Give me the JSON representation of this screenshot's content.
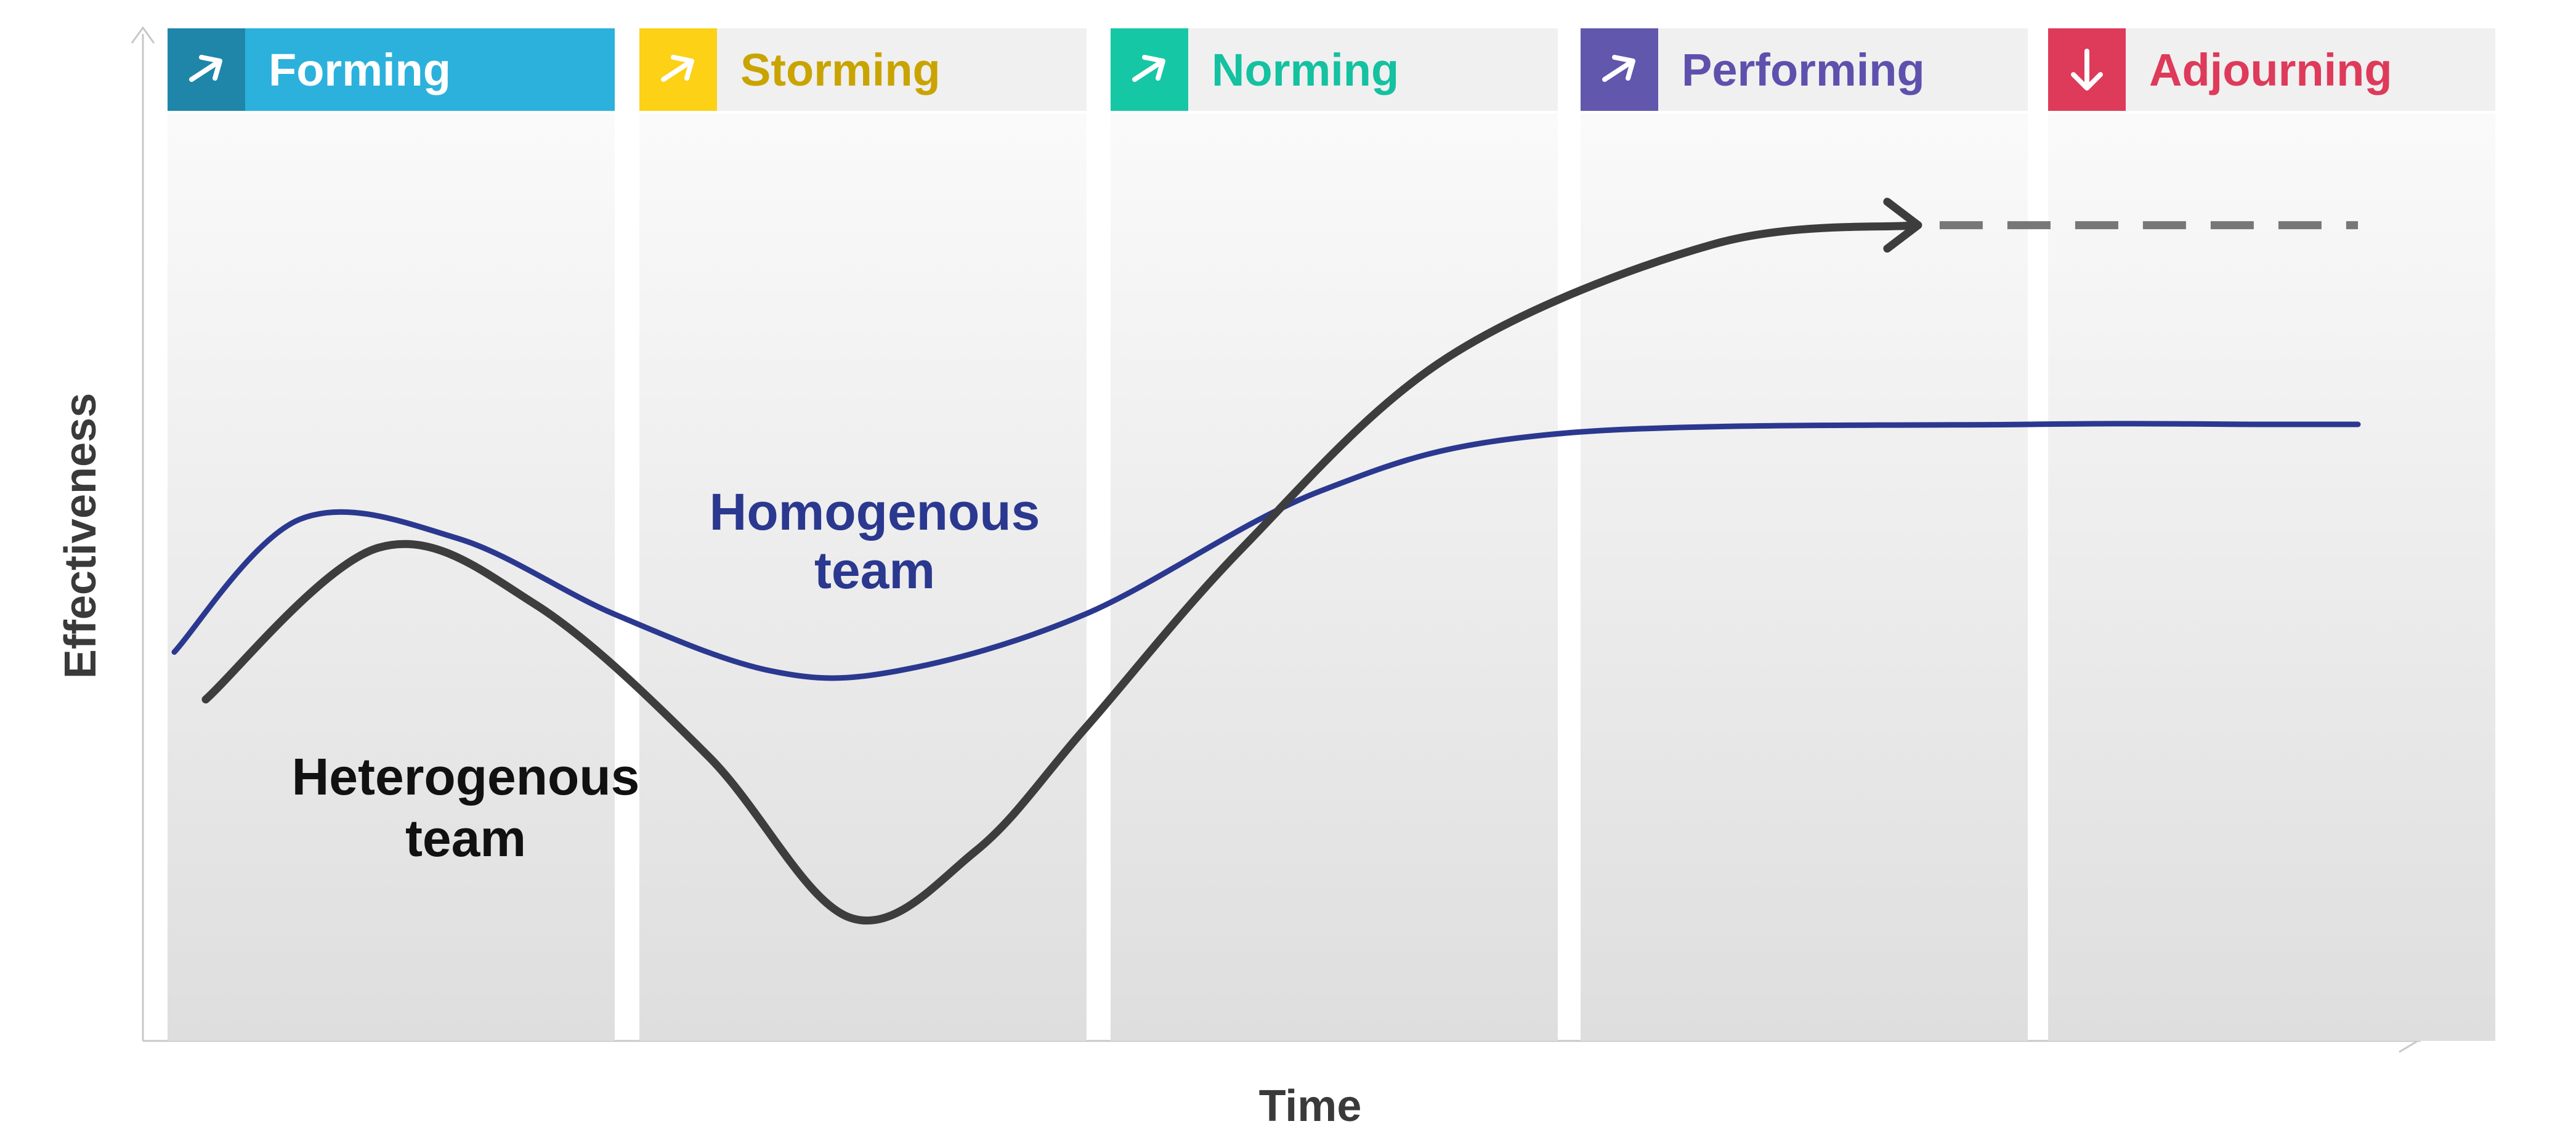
{
  "chart_data": {
    "type": "line",
    "xlabel": "Time",
    "ylabel": "Effectiveness",
    "stages": [
      {
        "name": "Forming",
        "icon": "arrow-up-right-icon",
        "color": "#2bb1dc",
        "icon_bg": "#1f86aa",
        "label_color": "#ffffff",
        "band_bg": "#2bb1dc"
      },
      {
        "name": "Storming",
        "icon": "arrow-up-right-icon",
        "color": "#fcd116",
        "icon_bg": "#fcd116",
        "label_color": "#c9a400",
        "band_bg": "#f0f0f0"
      },
      {
        "name": "Norming",
        "icon": "arrow-up-right-icon",
        "color": "#16c7a5",
        "icon_bg": "#16c7a5",
        "label_color": "#14c1a0",
        "band_bg": "#f0f0f0"
      },
      {
        "name": "Performing",
        "icon": "arrow-up-right-icon",
        "color": "#6157ad",
        "icon_bg": "#6157ad",
        "label_color": "#5e51ad",
        "band_bg": "#f0f0f0"
      },
      {
        "name": "Adjourning",
        "icon": "arrow-down-icon",
        "color": "#de3a5a",
        "icon_bg": "#de3a5a",
        "label_color": "#de3a5a",
        "band_bg": "#f0f0f0"
      }
    ],
    "series": [
      {
        "name": "Homogenous team",
        "label_lines": [
          "Homogenous",
          "team"
        ],
        "color": "#2b388f",
        "points": [
          [
            0.02,
            0.41
          ],
          [
            0.1,
            0.55
          ],
          [
            0.2,
            0.53
          ],
          [
            0.3,
            0.45
          ],
          [
            0.4,
            0.39
          ],
          [
            0.48,
            0.39
          ],
          [
            0.6,
            0.45
          ],
          [
            0.75,
            0.58
          ],
          [
            0.9,
            0.64
          ],
          [
            1.2,
            0.65
          ],
          [
            1.35,
            0.65
          ],
          [
            1.41,
            0.65
          ]
        ]
      },
      {
        "name": "Heterogenous team",
        "label_lines": [
          "Heterogenous",
          "team"
        ],
        "color": "#3d3d3d",
        "points": [
          [
            0.04,
            0.36
          ],
          [
            0.15,
            0.52
          ],
          [
            0.25,
            0.46
          ],
          [
            0.36,
            0.3
          ],
          [
            0.45,
            0.13
          ],
          [
            0.53,
            0.2
          ],
          [
            0.6,
            0.33
          ],
          [
            0.7,
            0.52
          ],
          [
            0.83,
            0.72
          ],
          [
            1.0,
            0.84
          ],
          [
            1.13,
            0.86
          ]
        ],
        "continuation": {
          "style": "dashed",
          "from_x": 1.13,
          "to_x": 1.41,
          "y": 0.86,
          "color": "#777777"
        }
      }
    ],
    "xlim": [
      0,
      1.45
    ],
    "ylim": [
      0,
      1.0
    ],
    "grid": false,
    "legend": "none"
  }
}
